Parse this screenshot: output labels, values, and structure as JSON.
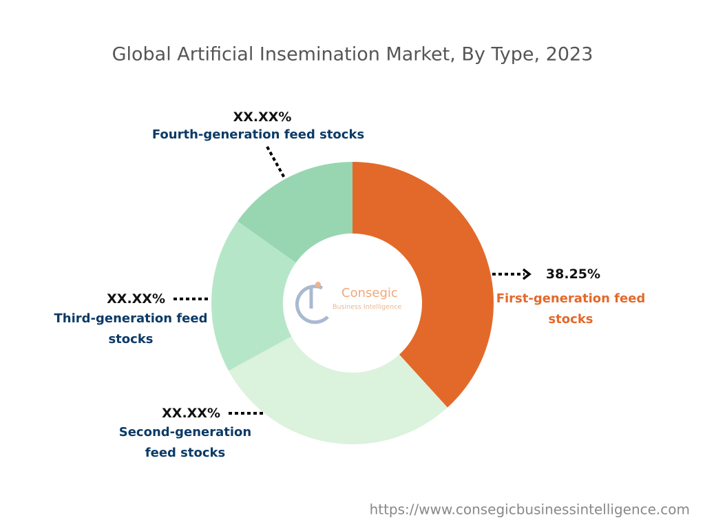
{
  "chart_data": {
    "type": "donut",
    "title": "Global Artificial Insemination Market, By Type, 2023",
    "categories": [
      "First-generation feed stocks",
      "Second-generation feed stocks",
      "Third-generation feed stocks",
      "Fourth-generation feed stocks"
    ],
    "values": [
      38.25,
      28.8,
      17.8,
      15.15
    ],
    "value_labels": [
      "38.25%",
      "XX.XX%",
      "XX.XX%",
      "XX.XX%"
    ],
    "colors": [
      "#e3692a",
      "#dbf2dd",
      "#b6e6c8",
      "#98d6b1"
    ]
  },
  "logo": {
    "name": "Consegic",
    "tagline": "Business Intelligence"
  },
  "footer": {
    "url": "https://www.consegicbusinessintelligence.com"
  }
}
